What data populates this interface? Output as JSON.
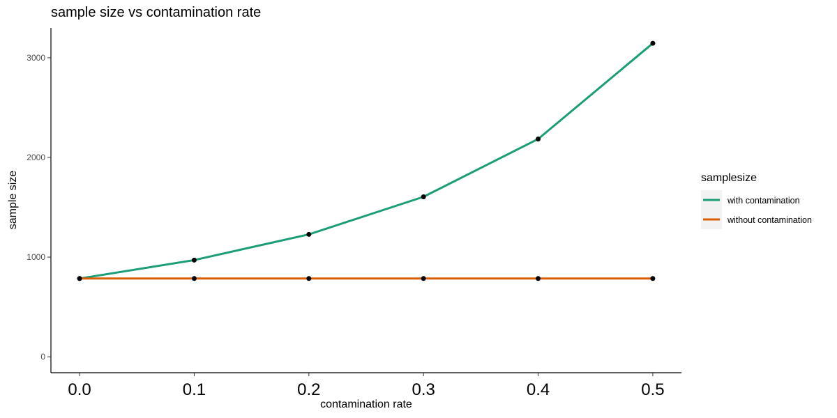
{
  "chart_data": {
    "type": "line",
    "title": "sample size vs contamination rate",
    "xlabel": "contamination rate",
    "ylabel": "sample size",
    "x": [
      0.0,
      0.1,
      0.2,
      0.3,
      0.4,
      0.5
    ],
    "x_tick_labels": [
      "0.0",
      "0.1",
      "0.2",
      "0.3",
      "0.4",
      "0.5"
    ],
    "y_ticks": [
      0,
      1000,
      2000,
      3000
    ],
    "y_tick_labels": [
      "0",
      "1000",
      "2000",
      "3000"
    ],
    "xlim": [
      -0.025,
      0.525
    ],
    "ylim": [
      -160,
      3300
    ],
    "grid": false,
    "legend": {
      "title": "samplesize",
      "position": "right"
    },
    "series": [
      {
        "name": "with contamination",
        "color": "#1b9e77",
        "values": [
          785,
          970,
          1228,
          1605,
          2185,
          3145
        ]
      },
      {
        "name": "without contamination",
        "color": "#d95f02",
        "values": [
          785,
          785,
          785,
          785,
          785,
          785
        ]
      }
    ],
    "point_color": "#000000"
  }
}
